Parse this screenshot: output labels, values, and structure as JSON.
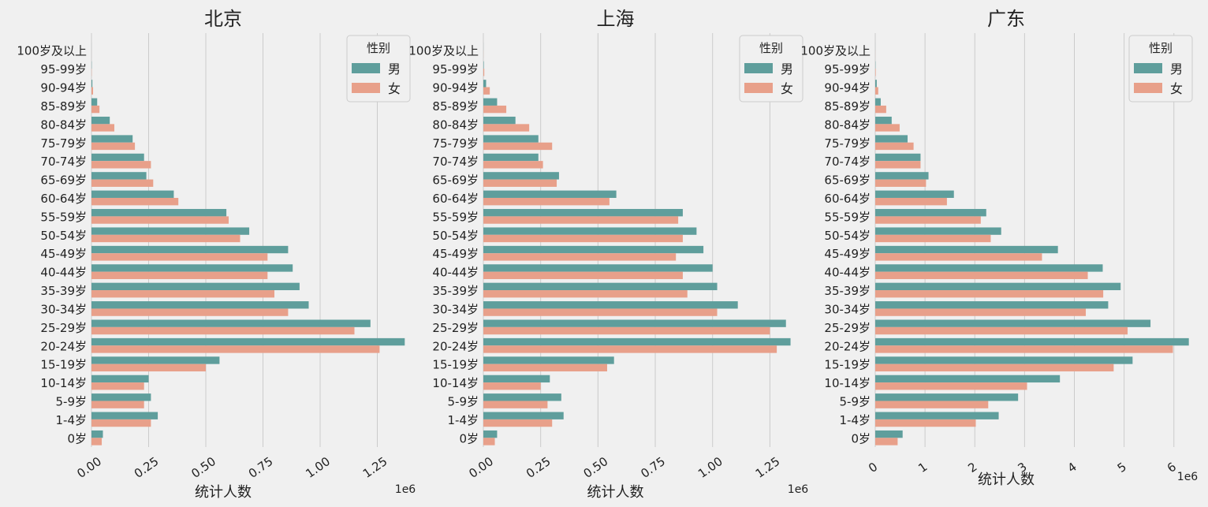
{
  "chart_data": [
    {
      "type": "bar",
      "orientation": "horizontal",
      "title": "北京",
      "xlabel": "统计人数",
      "ylabel": "",
      "x_offset_label": "1e6",
      "x_ticks": [
        "0.00",
        "0.25",
        "0.50",
        "0.75",
        "1.00",
        "1.25"
      ],
      "x_tick_values": [
        0,
        0.25,
        0.5,
        0.75,
        1.0,
        1.25
      ],
      "xlim": [
        0,
        1.4
      ],
      "grid": "vertical",
      "legend": {
        "title": "性别",
        "placement": "top-right"
      },
      "categories": [
        "0岁",
        "1-4岁",
        "5-9岁",
        "10-14岁",
        "15-19岁",
        "20-24岁",
        "25-29岁",
        "30-34岁",
        "35-39岁",
        "40-44岁",
        "45-49岁",
        "50-54岁",
        "55-59岁",
        "60-64岁",
        "65-69岁",
        "70-74岁",
        "75-79岁",
        "80-84岁",
        "85-89岁",
        "90-94岁",
        "95-99岁",
        "100岁及以上"
      ],
      "series": [
        {
          "name": "男",
          "values": [
            0.05,
            0.29,
            0.26,
            0.25,
            0.56,
            1.37,
            1.22,
            0.95,
            0.91,
            0.88,
            0.86,
            0.69,
            0.59,
            0.36,
            0.24,
            0.23,
            0.18,
            0.08,
            0.025,
            0.004,
            0.001,
            0.0001
          ]
        },
        {
          "name": "女",
          "values": [
            0.045,
            0.26,
            0.23,
            0.23,
            0.5,
            1.26,
            1.15,
            0.86,
            0.8,
            0.77,
            0.77,
            0.65,
            0.6,
            0.38,
            0.27,
            0.26,
            0.19,
            0.1,
            0.035,
            0.007,
            0.001,
            0.0001
          ]
        }
      ]
    },
    {
      "type": "bar",
      "orientation": "horizontal",
      "title": "上海",
      "xlabel": "统计人数",
      "ylabel": "",
      "x_offset_label": "1e6",
      "x_ticks": [
        "0.00",
        "0.25",
        "0.50",
        "0.75",
        "1.00",
        "1.25"
      ],
      "x_tick_values": [
        0,
        0.25,
        0.5,
        0.75,
        1.0,
        1.25
      ],
      "xlim": [
        0,
        1.4
      ],
      "grid": "vertical",
      "legend": {
        "title": "性别",
        "placement": "top-right"
      },
      "categories": [
        "0岁",
        "1-4岁",
        "5-9岁",
        "10-14岁",
        "15-19岁",
        "20-24岁",
        "25-29岁",
        "30-34岁",
        "35-39岁",
        "40-44岁",
        "45-49岁",
        "50-54岁",
        "55-59岁",
        "60-64岁",
        "65-69岁",
        "70-74岁",
        "75-79岁",
        "80-84岁",
        "85-89岁",
        "90-94岁",
        "95-99岁",
        "100岁及以上"
      ],
      "series": [
        {
          "name": "男",
          "values": [
            0.06,
            0.35,
            0.34,
            0.29,
            0.57,
            1.34,
            1.32,
            1.11,
            1.02,
            1.0,
            0.96,
            0.93,
            0.87,
            0.58,
            0.33,
            0.24,
            0.24,
            0.14,
            0.06,
            0.012,
            0.002,
            0.0002
          ]
        },
        {
          "name": "女",
          "values": [
            0.05,
            0.3,
            0.28,
            0.25,
            0.54,
            1.28,
            1.25,
            1.02,
            0.89,
            0.87,
            0.84,
            0.87,
            0.85,
            0.55,
            0.32,
            0.26,
            0.3,
            0.2,
            0.1,
            0.028,
            0.004,
            0.0003
          ]
        }
      ]
    },
    {
      "type": "bar",
      "orientation": "horizontal",
      "title": "广东",
      "xlabel": "统计人数",
      "ylabel": "",
      "x_offset_label": "1e6",
      "x_ticks": [
        "0",
        "1",
        "2",
        "3",
        "4",
        "5",
        "6"
      ],
      "x_tick_values": [
        0,
        1,
        2,
        3,
        4,
        5,
        6
      ],
      "xlim": [
        0,
        6.4
      ],
      "grid": "vertical",
      "legend": {
        "title": "性别",
        "placement": "top-right"
      },
      "categories": [
        "0岁",
        "1-4岁",
        "5-9岁",
        "10-14岁",
        "15-19岁",
        "20-24岁",
        "25-29岁",
        "30-34岁",
        "35-39岁",
        "40-44岁",
        "45-49岁",
        "50-54岁",
        "55-59岁",
        "60-64岁",
        "65-69岁",
        "70-74岁",
        "75-79岁",
        "80-84岁",
        "85-89岁",
        "90-94岁",
        "95-99岁",
        "100岁及以上"
      ],
      "series": [
        {
          "name": "男",
          "values": [
            0.55,
            2.48,
            2.87,
            3.71,
            5.17,
            6.3,
            5.53,
            4.68,
            4.93,
            4.57,
            3.67,
            2.53,
            2.23,
            1.58,
            1.07,
            0.91,
            0.65,
            0.33,
            0.11,
            0.03,
            0.005,
            0.0005
          ]
        },
        {
          "name": "女",
          "values": [
            0.45,
            2.02,
            2.27,
            3.05,
            4.79,
            5.98,
            5.07,
            4.23,
            4.58,
            4.27,
            3.35,
            2.32,
            2.12,
            1.44,
            1.02,
            0.91,
            0.77,
            0.49,
            0.22,
            0.06,
            0.01,
            0.001
          ]
        }
      ]
    }
  ],
  "colors": {
    "male": "#5f9e9c",
    "female": "#e8a08a",
    "grid": "#cbcbcb",
    "background": "#f0f0f0"
  }
}
